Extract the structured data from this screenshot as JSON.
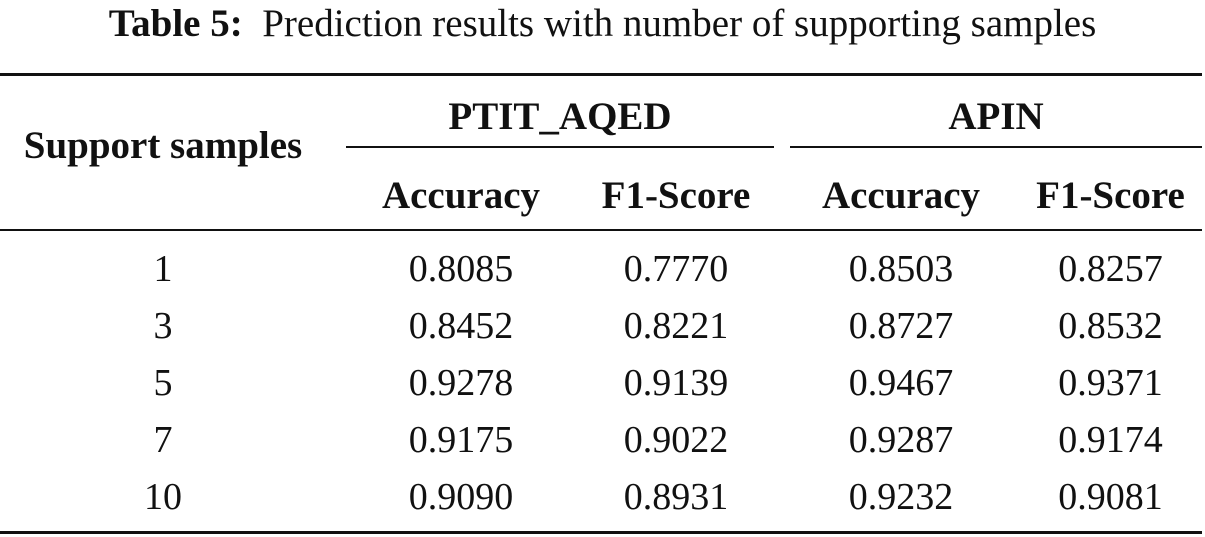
{
  "caption": {
    "label": "Table 5:",
    "text": "Prediction results with number of supporting samples"
  },
  "header": {
    "row_label": "Support samples",
    "groups": [
      "PTIT_AQED",
      "APIN"
    ],
    "subcolumns": [
      "Accuracy",
      "F1-Score",
      "Accuracy",
      "F1-Score"
    ]
  },
  "rows": [
    {
      "support": "1",
      "values": [
        "0.8085",
        "0.7770",
        "0.8503",
        "0.8257"
      ]
    },
    {
      "support": "3",
      "values": [
        "0.8452",
        "0.8221",
        "0.8727",
        "0.8532"
      ]
    },
    {
      "support": "5",
      "values": [
        "0.9278",
        "0.9139",
        "0.9467",
        "0.9371"
      ]
    },
    {
      "support": "7",
      "values": [
        "0.9175",
        "0.9022",
        "0.9287",
        "0.9174"
      ]
    },
    {
      "support": "10",
      "values": [
        "0.9090",
        "0.8931",
        "0.9232",
        "0.9081"
      ]
    }
  ]
}
